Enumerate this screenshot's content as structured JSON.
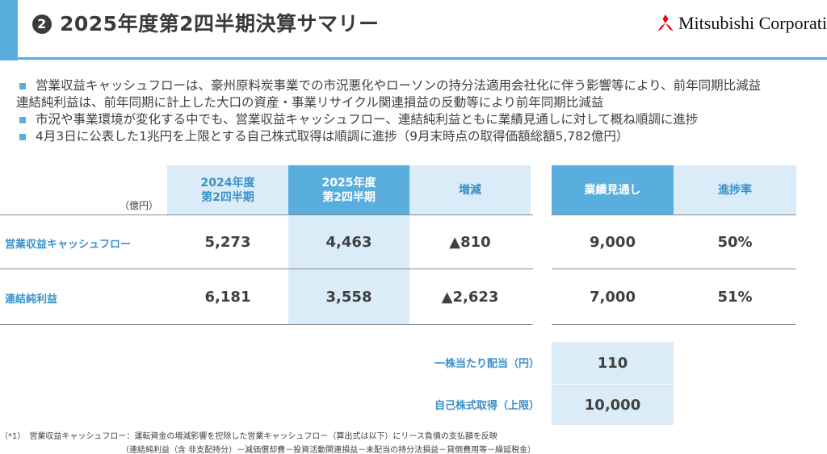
{
  "header": {
    "number": "2",
    "title": "2025年度第2四半期決算サマリー",
    "company": "Mitsubishi Corporati"
  },
  "bullets": [
    {
      "lines": [
        "営業収益キャッシュフローは、豪州原料炭事業での市況悪化やローソンの持分法適用会社化に伴う影響等により、前年同期比減益",
        "連結純利益は、前年同期に計上した大口の資産・事業リサイクル関連損益の反動等により前年同期比減益"
      ]
    },
    {
      "lines": [
        "市況や事業環境が変化する中でも、営業収益キャッシュフロー、連結純利益ともに業績見通しに対して概ね順調に進捗"
      ]
    },
    {
      "lines": [
        "4月3日に公表した1兆円を上限とする自己株式取得は順調に進捗（9月末時点の取得価額総額5,782億円）"
      ]
    }
  ],
  "table": {
    "unit": "（億円）",
    "columns": {
      "fy2024_q2": "2024年度\n第2四半期",
      "fy2025_q2": "2025年度\n第2四半期",
      "change": "増減",
      "forecast": "業績見通し",
      "progress": "進捗率"
    },
    "rows": [
      {
        "label": "営業収益キャッシュフロー",
        "fy2024_q2": "5,273",
        "fy2025_q2": "4,463",
        "change": "▲810",
        "forecast": "9,000",
        "progress": "50%"
      },
      {
        "label": "連結純利益",
        "fy2024_q2": "6,181",
        "fy2025_q2": "3,558",
        "change": "▲2,623",
        "forecast": "7,000",
        "progress": "51%"
      }
    ],
    "extra": [
      {
        "label": "一株当たり配当（円）",
        "value": "110"
      },
      {
        "label": "自己株式取得（上限）",
        "value": "10,000"
      }
    ]
  },
  "footnote": {
    "line1": "（*1）　営業収益キャッシュフロー：運転資金の増減影響を控除した営業キャッシュフロー（算出式は以下）にリース負債の支払額を反映",
    "line2": "（連結純利益（含 非支配持分）－減価償却費－投資活動関連損益－未配当の持分法損益－貸倒費用等－繰延税金）"
  },
  "colors": {
    "accent": "#5aaedd",
    "accent_light": "#d9ecf7",
    "label_blue": "#3b92c9",
    "text": "#404040"
  },
  "icons": {
    "logo": "three-diamonds-icon"
  }
}
